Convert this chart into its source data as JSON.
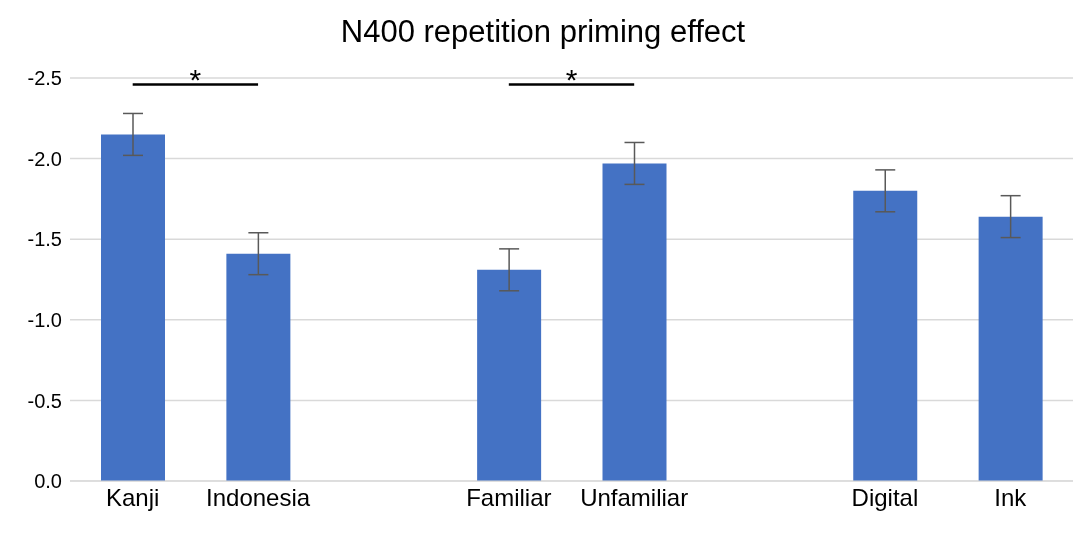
{
  "chart_data": {
    "type": "bar",
    "title": "N400 repetition priming effect",
    "categories": [
      "Kanji",
      "Indonesia",
      null,
      "Familiar",
      "Unfamiliar",
      null,
      "Digital",
      "Ink"
    ],
    "values": [
      -2.15,
      -1.41,
      null,
      -1.31,
      -1.97,
      null,
      -1.8,
      -1.64
    ],
    "errors": [
      0.13,
      0.13,
      null,
      0.13,
      0.13,
      null,
      0.13,
      0.13
    ],
    "color": "#4472c4",
    "ylim": [
      0,
      -2.5
    ],
    "yticks": [
      {
        "value": 0,
        "label": "0.0"
      },
      -0.5,
      {
        "value": -1,
        "label": "-1.0"
      },
      -1.5,
      {
        "value": -2,
        "label": "-2.0"
      },
      -2.5
    ],
    "grid": "y",
    "annotations": [
      "*",
      "*"
    ]
  }
}
